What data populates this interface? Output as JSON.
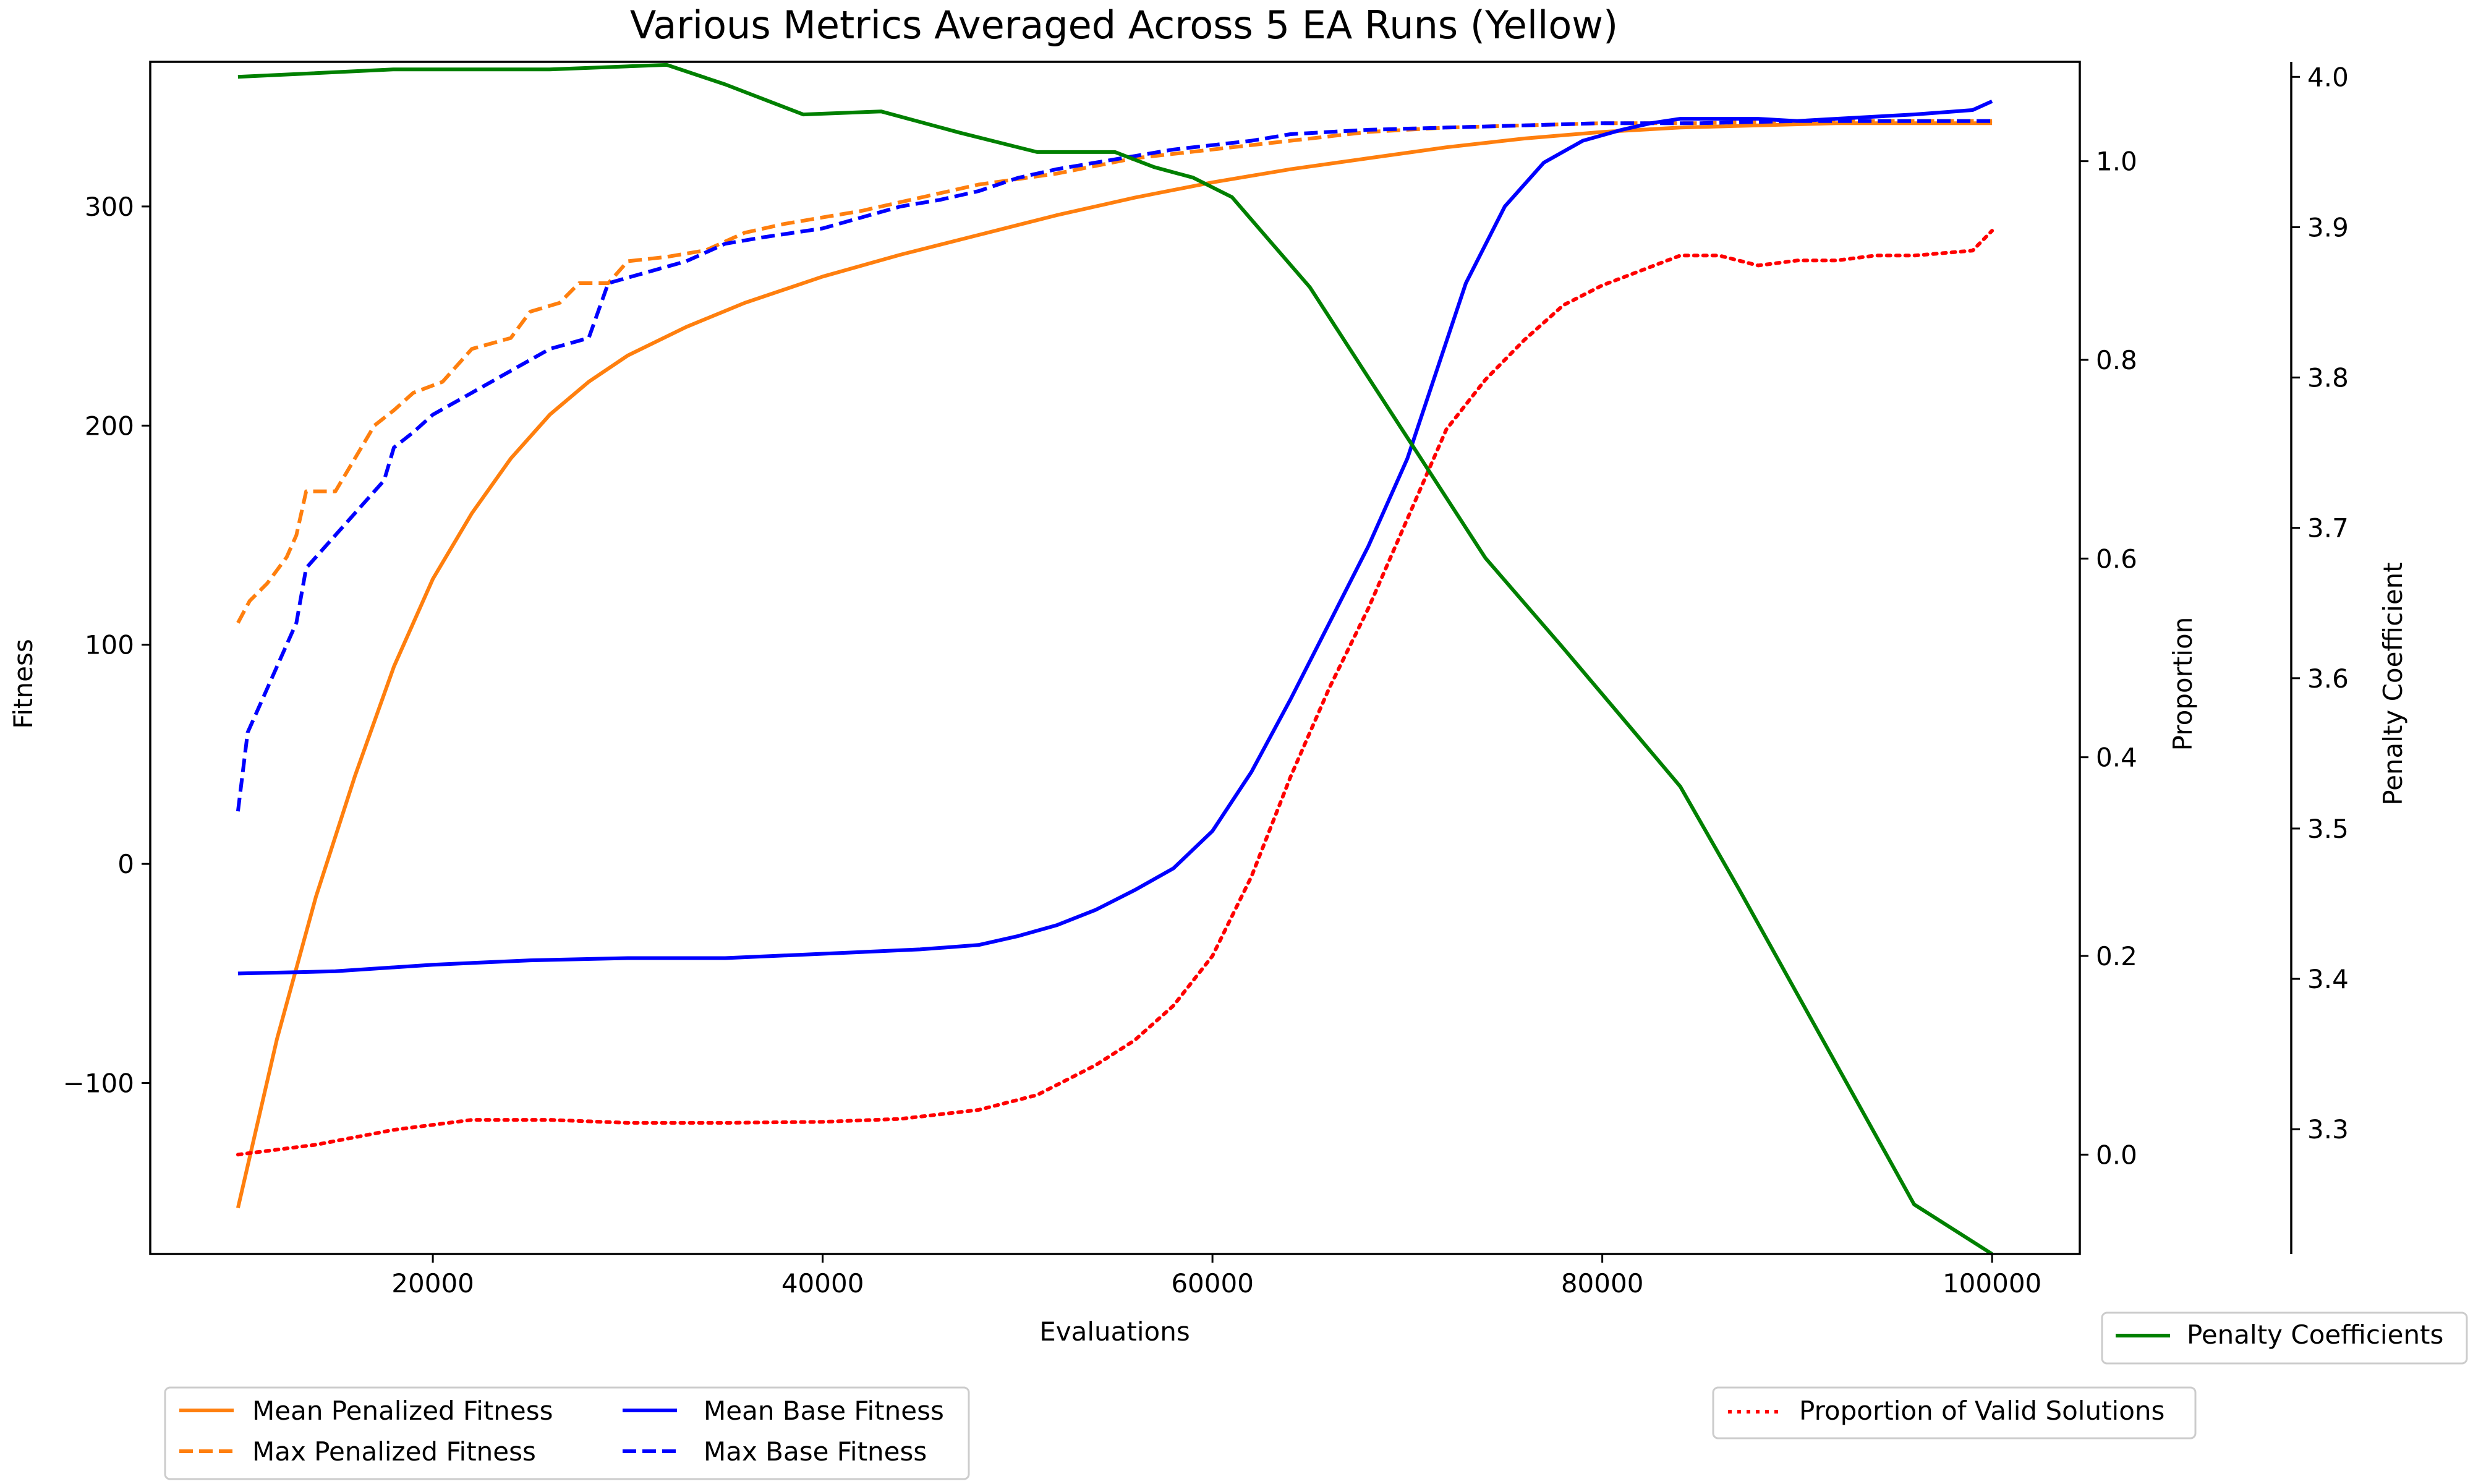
{
  "chart_data": {
    "type": "line",
    "title": "Various Metrics Averaged Across 5 EA Runs (Yellow)",
    "xlabel": "Evaluations",
    "xlim": [
      5500,
      104500
    ],
    "xticks": [
      20000,
      40000,
      60000,
      80000,
      100000
    ],
    "axes": {
      "fitness": {
        "label": "Fitness",
        "side": "left",
        "ylim": [
          -178,
          366
        ],
        "ticks": [
          -100,
          0,
          100,
          200,
          300
        ],
        "tick_labels": [
          "−100",
          "0",
          "100",
          "200",
          "300"
        ]
      },
      "proportion": {
        "label": "Proportion",
        "side": "right",
        "ylim": [
          -0.1,
          1.1
        ],
        "ticks": [
          0.0,
          0.2,
          0.4,
          0.6,
          0.8,
          1.0
        ],
        "tick_labels": [
          "0.0",
          "0.2",
          "0.4",
          "0.6",
          "0.8",
          "1.0"
        ]
      },
      "penalty": {
        "label": "Penalty Coefficient",
        "side": "right-outer",
        "ylim": [
          3.217,
          4.01
        ],
        "ticks": [
          3.3,
          3.4,
          3.5,
          3.6,
          3.7,
          3.8,
          3.9,
          4.0
        ],
        "tick_labels": [
          "3.3",
          "3.4",
          "3.5",
          "3.6",
          "3.7",
          "3.8",
          "3.9",
          "4.0"
        ]
      }
    },
    "series": [
      {
        "name": "Mean Penalized Fitness",
        "axis": "fitness",
        "color": "#ff7f0e",
        "style": "solid",
        "points": [
          [
            10000,
            -157
          ],
          [
            12000,
            -80
          ],
          [
            14000,
            -15
          ],
          [
            16000,
            40
          ],
          [
            18000,
            90
          ],
          [
            20000,
            130
          ],
          [
            22000,
            160
          ],
          [
            24000,
            185
          ],
          [
            26000,
            205
          ],
          [
            28000,
            220
          ],
          [
            30000,
            232
          ],
          [
            33000,
            245
          ],
          [
            36000,
            256
          ],
          [
            40000,
            268
          ],
          [
            44000,
            278
          ],
          [
            48000,
            287
          ],
          [
            52000,
            296
          ],
          [
            56000,
            304
          ],
          [
            60000,
            311
          ],
          [
            64000,
            317
          ],
          [
            68000,
            322
          ],
          [
            72000,
            327
          ],
          [
            76000,
            331
          ],
          [
            80000,
            334
          ],
          [
            84000,
            336
          ],
          [
            88000,
            337
          ],
          [
            92000,
            338
          ],
          [
            96000,
            338
          ],
          [
            100000,
            338
          ]
        ]
      },
      {
        "name": "Max Penalized Fitness",
        "axis": "fitness",
        "color": "#ff7f0e",
        "style": "dashed",
        "points": [
          [
            10000,
            110
          ],
          [
            10600,
            120
          ],
          [
            11500,
            128
          ],
          [
            12500,
            140
          ],
          [
            13000,
            150
          ],
          [
            13500,
            170
          ],
          [
            15000,
            170
          ],
          [
            16000,
            185
          ],
          [
            17000,
            200
          ],
          [
            18000,
            207
          ],
          [
            19000,
            215
          ],
          [
            20500,
            220
          ],
          [
            22000,
            235
          ],
          [
            24000,
            240
          ],
          [
            25000,
            252
          ],
          [
            26500,
            256
          ],
          [
            27500,
            265
          ],
          [
            29000,
            265
          ],
          [
            30000,
            275
          ],
          [
            32000,
            277
          ],
          [
            34000,
            280
          ],
          [
            36000,
            288
          ],
          [
            38000,
            292
          ],
          [
            40000,
            295
          ],
          [
            42000,
            298
          ],
          [
            44000,
            302
          ],
          [
            48000,
            310
          ],
          [
            52000,
            315
          ],
          [
            56000,
            322
          ],
          [
            60000,
            326
          ],
          [
            64000,
            330
          ],
          [
            68000,
            334
          ],
          [
            72000,
            336
          ],
          [
            76000,
            337
          ],
          [
            80000,
            338
          ],
          [
            85000,
            338
          ],
          [
            90000,
            339
          ],
          [
            100000,
            339
          ]
        ]
      },
      {
        "name": "Mean Base Fitness",
        "axis": "fitness",
        "color": "#0000ff",
        "style": "solid",
        "points": [
          [
            10000,
            -50
          ],
          [
            15000,
            -49
          ],
          [
            20000,
            -46
          ],
          [
            25000,
            -44
          ],
          [
            30000,
            -43
          ],
          [
            35000,
            -43
          ],
          [
            40000,
            -41
          ],
          [
            45000,
            -39
          ],
          [
            48000,
            -37
          ],
          [
            50000,
            -33
          ],
          [
            52000,
            -28
          ],
          [
            54000,
            -21
          ],
          [
            56000,
            -12
          ],
          [
            58000,
            -2
          ],
          [
            60000,
            15
          ],
          [
            62000,
            42
          ],
          [
            64000,
            75
          ],
          [
            66000,
            110
          ],
          [
            68000,
            145
          ],
          [
            70000,
            185
          ],
          [
            71500,
            225
          ],
          [
            73000,
            265
          ],
          [
            75000,
            300
          ],
          [
            77000,
            320
          ],
          [
            79000,
            330
          ],
          [
            81000,
            335
          ],
          [
            82500,
            338
          ],
          [
            84000,
            340
          ],
          [
            86000,
            340
          ],
          [
            88000,
            340
          ],
          [
            90000,
            339
          ],
          [
            92000,
            340
          ],
          [
            94000,
            341
          ],
          [
            96000,
            342
          ],
          [
            99000,
            344
          ],
          [
            100000,
            348
          ]
        ]
      },
      {
        "name": "Max Base Fitness",
        "axis": "fitness",
        "color": "#0000ff",
        "style": "dashed",
        "points": [
          [
            10000,
            24
          ],
          [
            10500,
            60
          ],
          [
            11000,
            70
          ],
          [
            12000,
            90
          ],
          [
            13000,
            110
          ],
          [
            13500,
            135
          ],
          [
            14500,
            145
          ],
          [
            16000,
            160
          ],
          [
            17500,
            175
          ],
          [
            18000,
            190
          ],
          [
            19000,
            197
          ],
          [
            20000,
            205
          ],
          [
            22000,
            215
          ],
          [
            24000,
            225
          ],
          [
            26000,
            235
          ],
          [
            28000,
            240
          ],
          [
            29000,
            265
          ],
          [
            31000,
            270
          ],
          [
            33000,
            275
          ],
          [
            35000,
            283
          ],
          [
            37000,
            286
          ],
          [
            40000,
            290
          ],
          [
            42000,
            295
          ],
          [
            44000,
            300
          ],
          [
            46000,
            303
          ],
          [
            48000,
            307
          ],
          [
            50000,
            313
          ],
          [
            52000,
            317
          ],
          [
            54000,
            320
          ],
          [
            56000,
            323
          ],
          [
            58000,
            326
          ],
          [
            60000,
            328
          ],
          [
            62000,
            330
          ],
          [
            64000,
            333
          ],
          [
            66000,
            334
          ],
          [
            68000,
            335
          ],
          [
            72000,
            336
          ],
          [
            76000,
            337
          ],
          [
            80000,
            338
          ],
          [
            85000,
            338
          ],
          [
            90000,
            339
          ],
          [
            100000,
            339
          ]
        ]
      },
      {
        "name": "Proportion of Valid Solutions",
        "axis": "proportion",
        "color": "#ff0000",
        "style": "dotted",
        "points": [
          [
            10000,
            0.0
          ],
          [
            14000,
            0.01
          ],
          [
            18000,
            0.025
          ],
          [
            22000,
            0.035
          ],
          [
            26000,
            0.035
          ],
          [
            30000,
            0.032
          ],
          [
            35000,
            0.032
          ],
          [
            40000,
            0.033
          ],
          [
            44000,
            0.036
          ],
          [
            48000,
            0.045
          ],
          [
            51000,
            0.06
          ],
          [
            54000,
            0.09
          ],
          [
            56000,
            0.115
          ],
          [
            58000,
            0.15
          ],
          [
            60000,
            0.2
          ],
          [
            62000,
            0.28
          ],
          [
            64000,
            0.38
          ],
          [
            66000,
            0.47
          ],
          [
            68000,
            0.55
          ],
          [
            70000,
            0.64
          ],
          [
            72000,
            0.73
          ],
          [
            74000,
            0.78
          ],
          [
            76000,
            0.82
          ],
          [
            78000,
            0.855
          ],
          [
            80000,
            0.875
          ],
          [
            82000,
            0.89
          ],
          [
            84000,
            0.905
          ],
          [
            86000,
            0.905
          ],
          [
            88000,
            0.895
          ],
          [
            90000,
            0.9
          ],
          [
            92000,
            0.9
          ],
          [
            94000,
            0.905
          ],
          [
            96000,
            0.905
          ],
          [
            99000,
            0.91
          ],
          [
            100000,
            0.93
          ]
        ]
      },
      {
        "name": "Penalty Coefficients",
        "axis": "penalty",
        "color": "#008000",
        "style": "solid",
        "points": [
          [
            10000,
            4.0
          ],
          [
            18000,
            4.005
          ],
          [
            26000,
            4.005
          ],
          [
            32000,
            4.008
          ],
          [
            35000,
            3.995
          ],
          [
            39000,
            3.975
          ],
          [
            43000,
            3.977
          ],
          [
            47000,
            3.963
          ],
          [
            51000,
            3.95
          ],
          [
            55000,
            3.95
          ],
          [
            57000,
            3.94
          ],
          [
            59000,
            3.933
          ],
          [
            61000,
            3.92
          ],
          [
            63000,
            3.89
          ],
          [
            65000,
            3.86
          ],
          [
            68000,
            3.8
          ],
          [
            71000,
            3.74
          ],
          [
            74000,
            3.68
          ],
          [
            78000,
            3.62
          ],
          [
            81000,
            3.574
          ],
          [
            84000,
            3.528
          ],
          [
            87000,
            3.46
          ],
          [
            90000,
            3.39
          ],
          [
            93000,
            3.32
          ],
          [
            96000,
            3.25
          ],
          [
            100000,
            3.217
          ]
        ]
      }
    ],
    "legends": [
      {
        "placement": "lower-left",
        "columns": 2,
        "entries": [
          "Mean Penalized Fitness",
          "Max Penalized Fitness",
          "Mean Base Fitness",
          "Max Base Fitness"
        ]
      },
      {
        "placement": "lower-right",
        "columns": 1,
        "entries": [
          "Proportion of Valid Solutions"
        ]
      },
      {
        "placement": "right-below-axes",
        "columns": 1,
        "entries": [
          "Penalty Coefficients"
        ]
      }
    ],
    "grid": false
  }
}
